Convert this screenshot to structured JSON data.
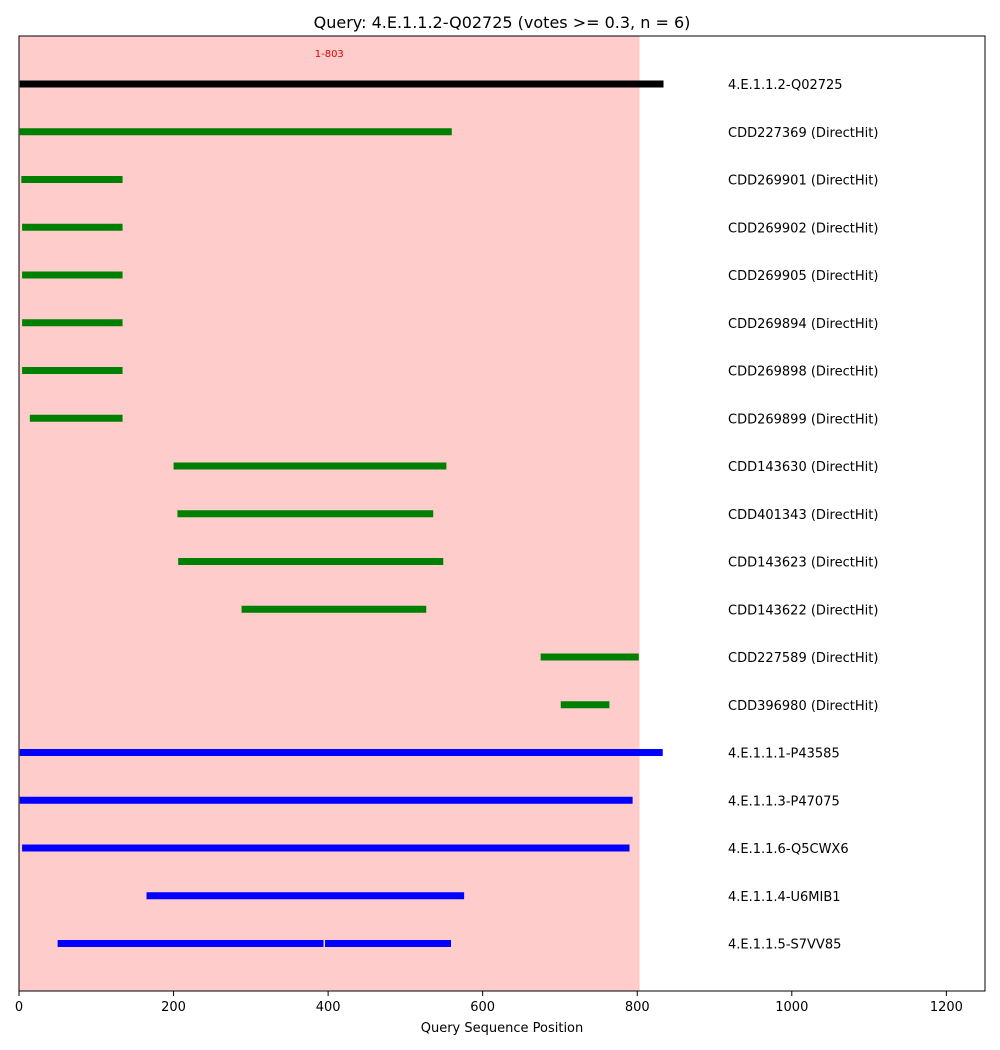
{
  "chart_data": {
    "type": "interval",
    "title": "Query: 4.E.1.1.2-Q02725 (votes >= 0.3, n = 6)",
    "xlabel": "Query Sequence Position",
    "ylabel": "",
    "xlim": [
      0,
      1250
    ],
    "xticks": [
      0,
      200,
      400,
      600,
      800,
      1000,
      1200
    ],
    "xtick_labels": [
      "0",
      "200",
      "400",
      "600",
      "800",
      "1000",
      "1200"
    ],
    "grid": false,
    "highlight_region": {
      "start": 0,
      "end": 803,
      "label": "1-803",
      "color": "#ffcccc"
    },
    "colors": {
      "query": "#000000",
      "cdd": "#008000",
      "reference": "#0000ff",
      "region_label": "#e00000"
    },
    "rows": [
      {
        "label": "4.E.1.1.2-Q02725",
        "group": "query",
        "segments": [
          [
            1,
            834
          ]
        ]
      },
      {
        "label": "CDD227369 (DirectHit)",
        "group": "cdd",
        "segments": [
          [
            1,
            560
          ]
        ]
      },
      {
        "label": "CDD269901 (DirectHit)",
        "group": "cdd",
        "segments": [
          [
            3,
            134
          ]
        ]
      },
      {
        "label": "CDD269902 (DirectHit)",
        "group": "cdd",
        "segments": [
          [
            4,
            134
          ]
        ]
      },
      {
        "label": "CDD269905 (DirectHit)",
        "group": "cdd",
        "segments": [
          [
            4,
            134
          ]
        ]
      },
      {
        "label": "CDD269894 (DirectHit)",
        "group": "cdd",
        "segments": [
          [
            4,
            134
          ]
        ]
      },
      {
        "label": "CDD269898 (DirectHit)",
        "group": "cdd",
        "segments": [
          [
            4,
            134
          ]
        ]
      },
      {
        "label": "CDD269899 (DirectHit)",
        "group": "cdd",
        "segments": [
          [
            14,
            134
          ]
        ]
      },
      {
        "label": "CDD143630 (DirectHit)",
        "group": "cdd",
        "segments": [
          [
            200,
            553
          ]
        ]
      },
      {
        "label": "CDD401343 (DirectHit)",
        "group": "cdd",
        "segments": [
          [
            205,
            536
          ]
        ]
      },
      {
        "label": "CDD143623 (DirectHit)",
        "group": "cdd",
        "segments": [
          [
            206,
            549
          ]
        ]
      },
      {
        "label": "CDD143622 (DirectHit)",
        "group": "cdd",
        "segments": [
          [
            288,
            527
          ]
        ]
      },
      {
        "label": "CDD227589 (DirectHit)",
        "group": "cdd",
        "segments": [
          [
            675,
            802
          ]
        ]
      },
      {
        "label": "CDD396980 (DirectHit)",
        "group": "cdd",
        "segments": [
          [
            701,
            764
          ]
        ]
      },
      {
        "label": "4.E.1.1.1-P43585",
        "group": "reference",
        "segments": [
          [
            1,
            833
          ]
        ]
      },
      {
        "label": "4.E.1.1.3-P47075",
        "group": "reference",
        "segments": [
          [
            1,
            794
          ]
        ]
      },
      {
        "label": "4.E.1.1.6-Q5CWX6",
        "group": "reference",
        "segments": [
          [
            4,
            790
          ]
        ]
      },
      {
        "label": "4.E.1.1.4-U6MIB1",
        "group": "reference",
        "segments": [
          [
            165,
            576
          ]
        ]
      },
      {
        "label": "4.E.1.1.5-S7VV85",
        "group": "reference",
        "segments": [
          [
            50,
            394
          ],
          [
            396,
            559
          ]
        ]
      }
    ]
  }
}
